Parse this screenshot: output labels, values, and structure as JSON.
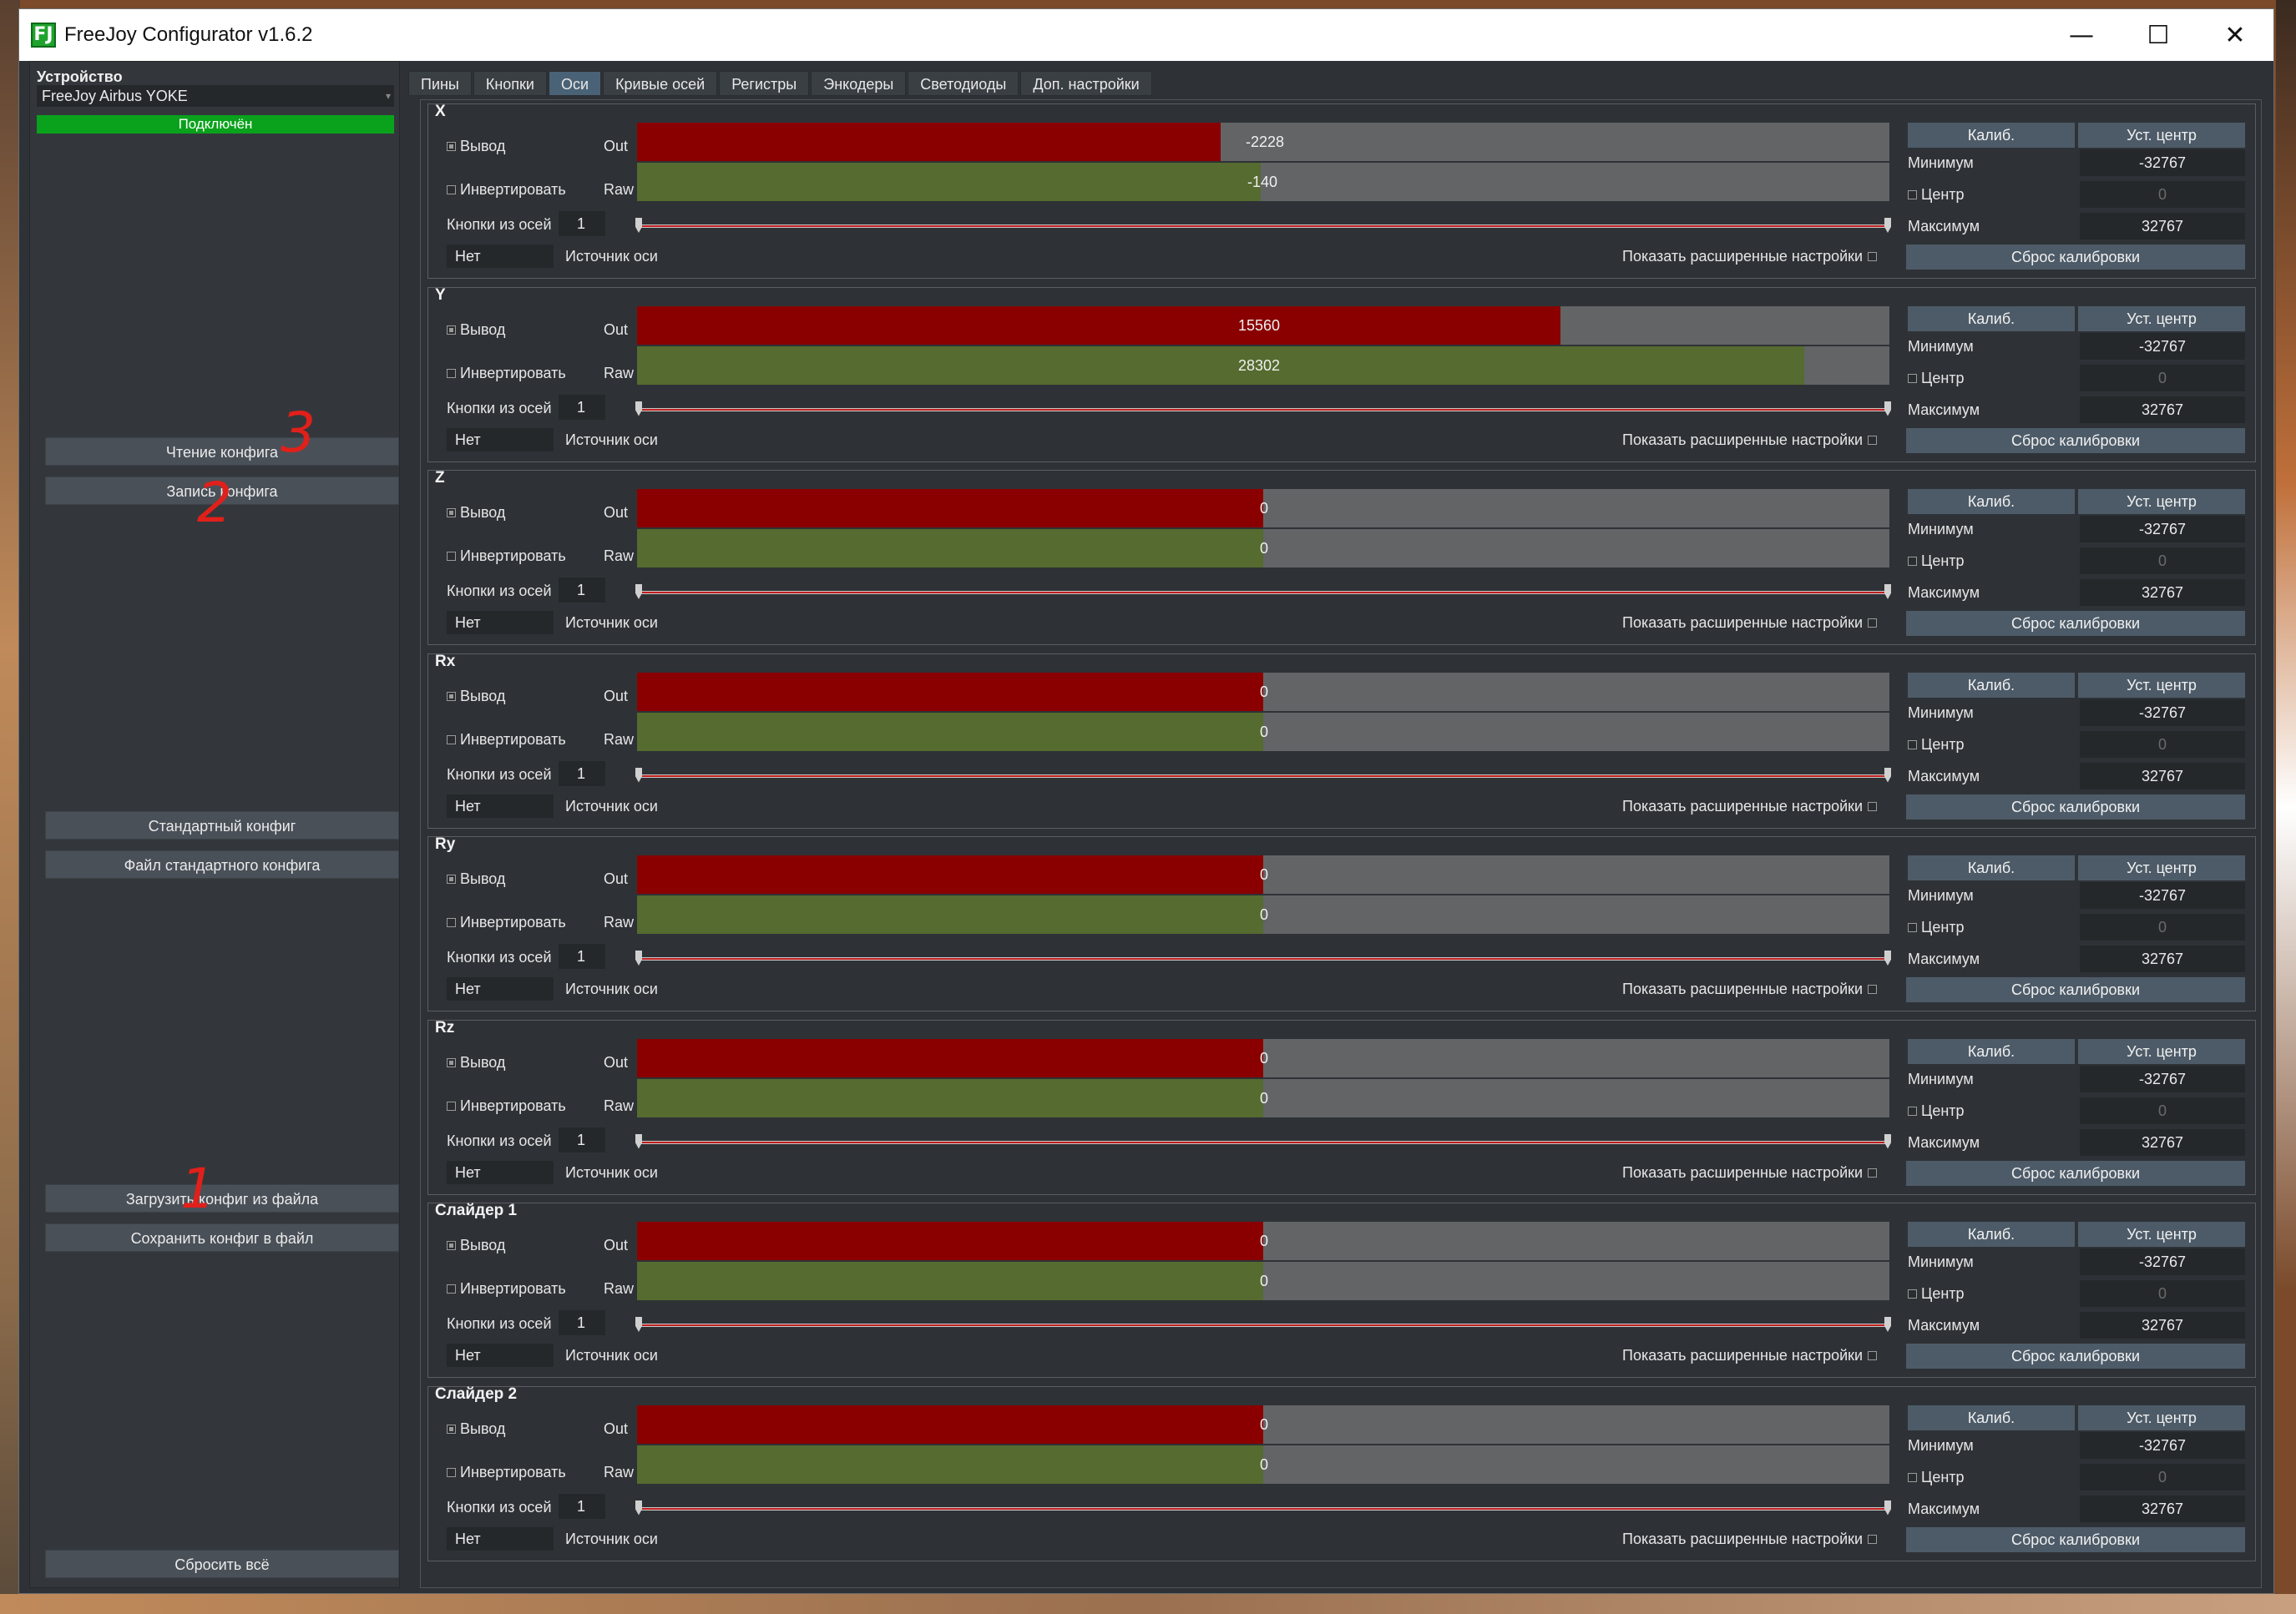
{
  "window": {
    "title": "FreeJoy Configurator v1.6.2",
    "icon_text": "FJ"
  },
  "controls": {
    "minimize": "—",
    "maximize": "☐",
    "close": "✕"
  },
  "sidebar": {
    "device_label": "Устройство",
    "device_value": "FreeJoy Airbus YOKE",
    "status": "Подключён",
    "buttons": {
      "read": "Чтение конфига",
      "write": "Запись конфига",
      "default_config": "Стандартный конфиг",
      "default_file": "Файл стандартного конфига",
      "load_file": "Загрузить конфиг из файла",
      "save_file": "Сохранить конфиг в файл",
      "reset_all": "Сбросить всё"
    },
    "annotations": {
      "a3": "3",
      "a2": "2",
      "a1": "1"
    }
  },
  "tabs": [
    "Пины",
    "Кнопки",
    "Оси",
    "Кривые осей",
    "Регистры",
    "Энкодеры",
    "Светодиоды",
    "Доп. настройки"
  ],
  "active_tab": 2,
  "labels": {
    "output": "Вывод",
    "invert": "Инвертировать",
    "out": "Out",
    "raw": "Raw",
    "buttons_from_axis": "Кнопки из осей",
    "source": "Источник оси",
    "advanced": "Показать расширенные настройки",
    "calib": "Калиб.",
    "set_center": "Уст. центр",
    "min": "Минимум",
    "center": "Центр",
    "max": "Максимум",
    "reset_calib": "Сброс калибровки",
    "none": "Нет"
  },
  "axes": [
    {
      "name": "X",
      "out": -2228,
      "raw": -140,
      "out_text": "-2228",
      "raw_text": "-140",
      "buttons": "1",
      "min": "-32767",
      "center": "0",
      "max": "32767"
    },
    {
      "name": "Y",
      "out": 15560,
      "raw": 28302,
      "out_text": "15560",
      "raw_text": "28302",
      "buttons": "1",
      "min": "-32767",
      "center": "0",
      "max": "32767"
    },
    {
      "name": "Z",
      "out": 0,
      "raw": 0,
      "out_text": "0",
      "raw_text": "0",
      "buttons": "1",
      "min": "-32767",
      "center": "0",
      "max": "32767"
    },
    {
      "name": "Rx",
      "out": 0,
      "raw": 0,
      "out_text": "0",
      "raw_text": "0",
      "buttons": "1",
      "min": "-32767",
      "center": "0",
      "max": "32767"
    },
    {
      "name": "Ry",
      "out": 0,
      "raw": 0,
      "out_text": "0",
      "raw_text": "0",
      "buttons": "1",
      "min": "-32767",
      "center": "0",
      "max": "32767"
    },
    {
      "name": "Rz",
      "out": 0,
      "raw": 0,
      "out_text": "0",
      "raw_text": "0",
      "buttons": "1",
      "min": "-32767",
      "center": "0",
      "max": "32767"
    },
    {
      "name": "Слайдер 1",
      "out": 0,
      "raw": 0,
      "out_text": "0",
      "raw_text": "0",
      "buttons": "1",
      "min": "-32767",
      "center": "0",
      "max": "32767"
    },
    {
      "name": "Слайдер 2",
      "out": 0,
      "raw": 0,
      "out_text": "0",
      "raw_text": "0",
      "buttons": "1",
      "min": "-32767",
      "center": "0",
      "max": "32767"
    }
  ],
  "colors": {
    "out_bar": "#8a0000",
    "raw_bar": "#556b2f",
    "track": "#636466",
    "connected": "#0aa21c",
    "annotation": "#e0201a"
  }
}
